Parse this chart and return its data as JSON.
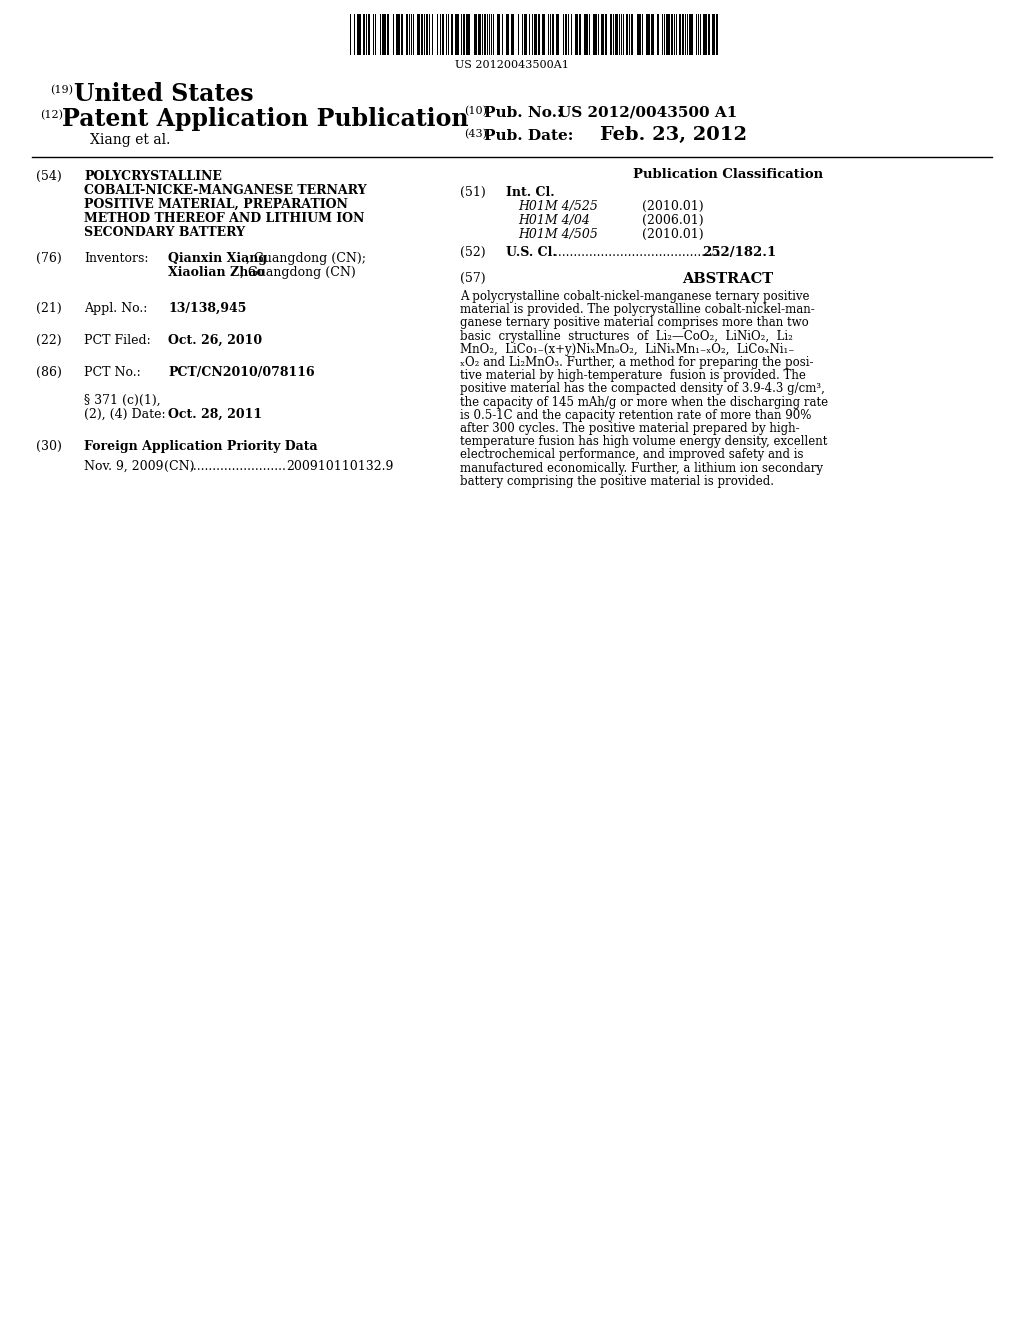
{
  "background_color": "#ffffff",
  "barcode_text": "US 20120043500A1",
  "section19_num": "(19)",
  "section19_text": "United States",
  "section12_num": "(12)",
  "section12_text": "Patent Application Publication",
  "pub_no_num": "(10)",
  "pub_no_label": "Pub. No.:",
  "pub_no_value": "US 2012/0043500 A1",
  "xiang_label": "Xiang et al.",
  "pub_date_num": "(43)",
  "pub_date_label": "Pub. Date:",
  "pub_date_value": "Feb. 23, 2012",
  "section54_num": "(54)",
  "section54_lines": [
    "POLYCRYSTALLINE",
    "COBALT-NICKE-MANGANESE TERNARY",
    "POSITIVE MATERIAL, PREPARATION",
    "METHOD THEREOF AND LITHIUM ION",
    "SECONDARY BATTERY"
  ],
  "pub_class_header": "Publication Classification",
  "section51_num": "(51)",
  "int_cl_label": "Int. Cl.",
  "int_cl_codes": [
    "H01M 4/525",
    "H01M 4/04",
    "H01M 4/505"
  ],
  "int_cl_dates": [
    "(2010.01)",
    "(2006.01)",
    "(2010.01)"
  ],
  "section52_num": "(52)",
  "us_cl_label": "U.S. Cl.",
  "us_cl_value": "252/182.1",
  "section76_num": "(76)",
  "inventors_label": "Inventors:",
  "inventor1_bold": "Qianxin Xiang",
  "inventor1_rest": ", Guangdong (CN);",
  "inventor2_bold": "Xiaolian Zhao",
  "inventor2_rest": ", Guangdong (CN)",
  "section21_num": "(21)",
  "appl_no_label": "Appl. No.:",
  "appl_no_value": "13/138,945",
  "section22_num": "(22)",
  "pct_filed_label": "PCT Filed:",
  "pct_filed_value": "Oct. 26, 2010",
  "section86_num": "(86)",
  "pct_no_label": "PCT No.:",
  "pct_no_value": "PCT/CN2010/078116",
  "section371_line1": "§ 371 (c)(1),",
  "section371_label": "(2), (4) Date:",
  "section371_value": "Oct. 28, 2011",
  "section30_num": "(30)",
  "foreign_app_label": "Foreign Application Priority Data",
  "foreign_app_line": "Nov. 9, 2009    (CN)  ........................  200910110132.9",
  "section57_num": "(57)",
  "abstract_header": "ABSTRACT",
  "abstract_lines": [
    "A polycrystalline cobalt-nickel-manganese ternary positive",
    "material is provided. The polycrystalline cobalt-nickel-man-",
    "ganese ternary positive material comprises more than two",
    "basic  crystalline  structures  of  Li₂—CoO₂,  LiNiO₂,  Li₂",
    "MnO₂,  LiCo₁₋(x+y)NiₓMnₔO₂,  LiNiₓMn₁₋ₓO₂,  LiCoₓNi₁₋",
    "ₓO₂ and Li₂MnO₃. Further, a method for preparing the posi-",
    "tive material by high-temperature  fusion is provided. The",
    "positive material has the compacted density of 3.9-4.3 g/cm³,",
    "the capacity of 145 mAh/g or more when the discharging rate",
    "is 0.5-1C and the capacity retention rate of more than 90%",
    "after 300 cycles. The positive material prepared by high-",
    "temperature fusion has high volume energy density, excellent",
    "electrochemical performance, and improved safety and is",
    "manufactured economically. Further, a lithium ion secondary",
    "battery comprising the positive material is provided."
  ]
}
